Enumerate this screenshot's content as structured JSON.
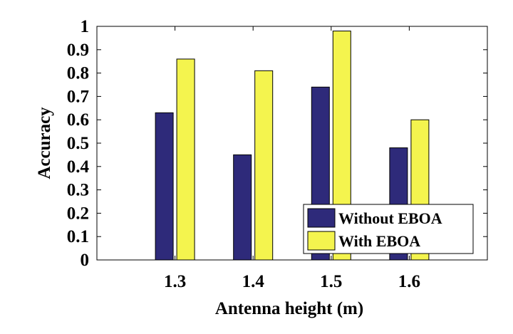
{
  "chart_data": {
    "type": "bar",
    "categories": [
      "1.3",
      "1.4",
      "1.5",
      "1.6"
    ],
    "series": [
      {
        "name": "Without EBOA",
        "values": [
          0.63,
          0.45,
          0.74,
          0.48
        ],
        "color": "#2e2a7a"
      },
      {
        "name": "With EBOA",
        "values": [
          0.86,
          0.81,
          0.98,
          0.6
        ],
        "color": "#f4f44e"
      }
    ],
    "xlabel": "Antenna height (m)",
    "ylabel": "Accuracy",
    "ylim": [
      0,
      1
    ],
    "xlim": [
      1.2,
      1.7
    ],
    "yticks": [
      "0",
      "0.1",
      "0.2",
      "0.3",
      "0.4",
      "0.5",
      "0.6",
      "0.7",
      "0.8",
      "0.9",
      "1"
    ],
    "grid": false,
    "legend_position": "bottom-right"
  }
}
